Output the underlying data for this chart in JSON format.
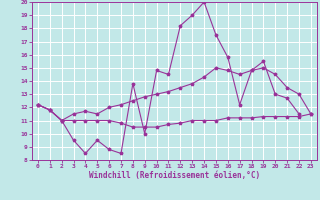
{
  "xlabel": "Windchill (Refroidissement éolien,°C)",
  "xlim": [
    -0.5,
    23.5
  ],
  "ylim": [
    8,
    20
  ],
  "yticks": [
    8,
    9,
    10,
    11,
    12,
    13,
    14,
    15,
    16,
    17,
    18,
    19,
    20
  ],
  "xticks": [
    0,
    1,
    2,
    3,
    4,
    5,
    6,
    7,
    8,
    9,
    10,
    11,
    12,
    13,
    14,
    15,
    16,
    17,
    18,
    19,
    20,
    21,
    22,
    23
  ],
  "bg_color": "#c2e8e8",
  "line_color": "#993399",
  "grid_color": "#ffffff",
  "line1_y": [
    12.2,
    11.8,
    11.0,
    9.5,
    8.5,
    9.5,
    8.8,
    8.5,
    13.8,
    10.0,
    14.8,
    14.5,
    18.2,
    19.0,
    20.0,
    17.5,
    15.8,
    12.2,
    14.8,
    15.5,
    13.0,
    12.7,
    11.5,
    null
  ],
  "line2_y": [
    12.2,
    11.8,
    11.0,
    11.5,
    11.7,
    11.5,
    12.0,
    12.2,
    12.5,
    12.8,
    13.0,
    13.2,
    13.5,
    13.8,
    14.3,
    15.0,
    14.8,
    14.5,
    14.8,
    15.0,
    14.5,
    13.5,
    13.0,
    11.5
  ],
  "line3_y": [
    12.2,
    11.8,
    11.0,
    11.0,
    11.0,
    11.0,
    11.0,
    10.8,
    10.5,
    10.5,
    10.5,
    10.7,
    10.8,
    11.0,
    11.0,
    11.0,
    11.2,
    11.2,
    11.2,
    11.3,
    11.3,
    11.3,
    11.3,
    11.5
  ]
}
